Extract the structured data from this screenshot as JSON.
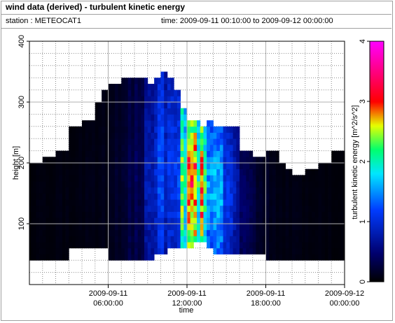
{
  "title": "wind data (derived) - turbulent kinetic energy",
  "station_label": "station : METEOCAT1",
  "time_label": "time: 2009-09-11 00:10:00 to 2009-09-12 00:00:00",
  "chart_data": {
    "type": "heatmap",
    "xlabel": "time",
    "ylabel": "height [m]",
    "colorbar_label": "turbulent kinetic energy [m^2/s^2]",
    "xlim": [
      "2009-09-11 00:00:00",
      "2009-09-12 00:00:00"
    ],
    "ylim": [
      0,
      400
    ],
    "clim": [
      0,
      4
    ],
    "grid": true,
    "x_ticks": [
      {
        "value": "2009-09-11 06:00:00",
        "line1": "2009-09-11",
        "line2": "06:00:00"
      },
      {
        "value": "2009-09-11 12:00:00",
        "line1": "2009-09-11",
        "line2": "12:00:00"
      },
      {
        "value": "2009-09-11 18:00:00",
        "line1": "2009-09-11",
        "line2": "18:00:00"
      },
      {
        "value": "2009-09-12 00:00:00",
        "line1": "2009-09-12",
        "line2": "00:00:00"
      }
    ],
    "y_ticks": [
      100,
      200,
      300,
      400
    ],
    "colorbar_ticks": [
      0,
      1,
      2,
      3,
      4
    ],
    "time_step_hours": 0.25,
    "height_step_m": 10,
    "columns": [
      {
        "start": "2009-09-11 00:00:00",
        "end": "2009-09-11 01:00:00",
        "bottom": 40,
        "top": 200
      },
      {
        "start": "2009-09-11 01:00:00",
        "end": "2009-09-11 02:00:00",
        "bottom": 40,
        "top": 210
      },
      {
        "start": "2009-09-11 02:00:00",
        "end": "2009-09-11 03:00:00",
        "bottom": 40,
        "top": 220
      },
      {
        "start": "2009-09-11 03:00:00",
        "end": "2009-09-11 04:00:00",
        "bottom": 60,
        "top": 260
      },
      {
        "start": "2009-09-11 04:00:00",
        "end": "2009-09-11 05:00:00",
        "bottom": 60,
        "top": 270
      },
      {
        "start": "2009-09-11 05:00:00",
        "end": "2009-09-11 05:30:00",
        "bottom": 60,
        "top": 300
      },
      {
        "start": "2009-09-11 05:30:00",
        "end": "2009-09-11 06:00:00",
        "bottom": 60,
        "top": 320
      },
      {
        "start": "2009-09-11 06:00:00",
        "end": "2009-09-11 07:00:00",
        "bottom": 40,
        "top": 330
      },
      {
        "start": "2009-09-11 07:00:00",
        "end": "2009-09-11 08:00:00",
        "bottom": 40,
        "top": 340
      },
      {
        "start": "2009-09-11 08:00:00",
        "end": "2009-09-11 09:00:00",
        "bottom": 40,
        "top": 340
      },
      {
        "start": "2009-09-11 09:00:00",
        "end": "2009-09-11 09:30:00",
        "bottom": 40,
        "top": 330
      },
      {
        "start": "2009-09-11 09:30:00",
        "end": "2009-09-11 10:00:00",
        "bottom": 50,
        "top": 340
      },
      {
        "start": "2009-09-11 10:00:00",
        "end": "2009-09-11 10:30:00",
        "bottom": 50,
        "top": 350
      },
      {
        "start": "2009-09-11 10:30:00",
        "end": "2009-09-11 11:00:00",
        "bottom": 60,
        "top": 340
      },
      {
        "start": "2009-09-11 11:00:00",
        "end": "2009-09-11 11:30:00",
        "bottom": 60,
        "top": 320
      },
      {
        "start": "2009-09-11 11:30:00",
        "end": "2009-09-11 12:00:00",
        "bottom": 60,
        "top": 290
      },
      {
        "start": "2009-09-11 12:00:00",
        "end": "2009-09-11 12:30:00",
        "bottom": 60,
        "top": 270
      },
      {
        "start": "2009-09-11 12:30:00",
        "end": "2009-09-11 13:00:00",
        "bottom": 70,
        "top": 270
      },
      {
        "start": "2009-09-11 13:00:00",
        "end": "2009-09-11 13:30:00",
        "bottom": 70,
        "top": 260
      },
      {
        "start": "2009-09-11 13:30:00",
        "end": "2009-09-11 14:00:00",
        "bottom": 60,
        "top": 270
      },
      {
        "start": "2009-09-11 14:00:00",
        "end": "2009-09-11 15:00:00",
        "bottom": 50,
        "top": 260
      },
      {
        "start": "2009-09-11 15:00:00",
        "end": "2009-09-11 16:00:00",
        "bottom": 50,
        "top": 260
      },
      {
        "start": "2009-09-11 16:00:00",
        "end": "2009-09-11 16:30:00",
        "bottom": 50,
        "top": 220
      },
      {
        "start": "2009-09-11 16:30:00",
        "end": "2009-09-11 17:00:00",
        "bottom": 50,
        "top": 220
      },
      {
        "start": "2009-09-11 17:00:00",
        "end": "2009-09-11 18:00:00",
        "bottom": 50,
        "top": 210
      },
      {
        "start": "2009-09-11 18:00:00",
        "end": "2009-09-11 19:00:00",
        "bottom": 40,
        "top": 220
      },
      {
        "start": "2009-09-11 19:00:00",
        "end": "2009-09-11 19:30:00",
        "bottom": 40,
        "top": 200
      },
      {
        "start": "2009-09-11 19:30:00",
        "end": "2009-09-11 20:00:00",
        "bottom": 40,
        "top": 190
      },
      {
        "start": "2009-09-11 20:00:00",
        "end": "2009-09-11 21:00:00",
        "bottom": 40,
        "top": 180
      },
      {
        "start": "2009-09-11 21:00:00",
        "end": "2009-09-11 22:00:00",
        "bottom": 40,
        "top": 190
      },
      {
        "start": "2009-09-11 22:00:00",
        "end": "2009-09-11 23:00:00",
        "bottom": 40,
        "top": 200
      },
      {
        "start": "2009-09-11 23:00:00",
        "end": "2009-09-12 00:00:00",
        "bottom": 40,
        "top": 220
      }
    ],
    "tke_profile": [
      {
        "time": "2009-09-11 00:00:00",
        "tke": 0.05
      },
      {
        "time": "2009-09-11 06:00:00",
        "tke": 0.1
      },
      {
        "time": "2009-09-11 07:45:00",
        "tke": 0.3
      },
      {
        "time": "2009-09-11 08:30:00",
        "tke": 0.5
      },
      {
        "time": "2009-09-11 09:15:00",
        "tke": 0.75
      },
      {
        "time": "2009-09-11 10:00:00",
        "tke": 1.0
      },
      {
        "time": "2009-09-11 10:45:00",
        "tke": 1.2
      },
      {
        "time": "2009-09-11 11:30:00",
        "tke": 1.8
      },
      {
        "time": "2009-09-11 12:00:00",
        "tke": 2.2
      },
      {
        "time": "2009-09-11 12:30:00",
        "tke": 2.8
      },
      {
        "time": "2009-09-11 13:00:00",
        "tke": 3.3
      },
      {
        "time": "2009-09-11 13:15:00",
        "tke": 2.6
      },
      {
        "time": "2009-09-11 13:45:00",
        "tke": 2.0
      },
      {
        "time": "2009-09-11 14:30:00",
        "tke": 1.5
      },
      {
        "time": "2009-09-11 15:30:00",
        "tke": 0.8
      },
      {
        "time": "2009-09-11 16:30:00",
        "tke": 0.4
      },
      {
        "time": "2009-09-11 17:30:00",
        "tke": 0.2
      },
      {
        "time": "2009-09-11 19:00:00",
        "tke": 0.1
      },
      {
        "time": "2009-09-12 00:00:00",
        "tke": 0.05
      }
    ]
  }
}
